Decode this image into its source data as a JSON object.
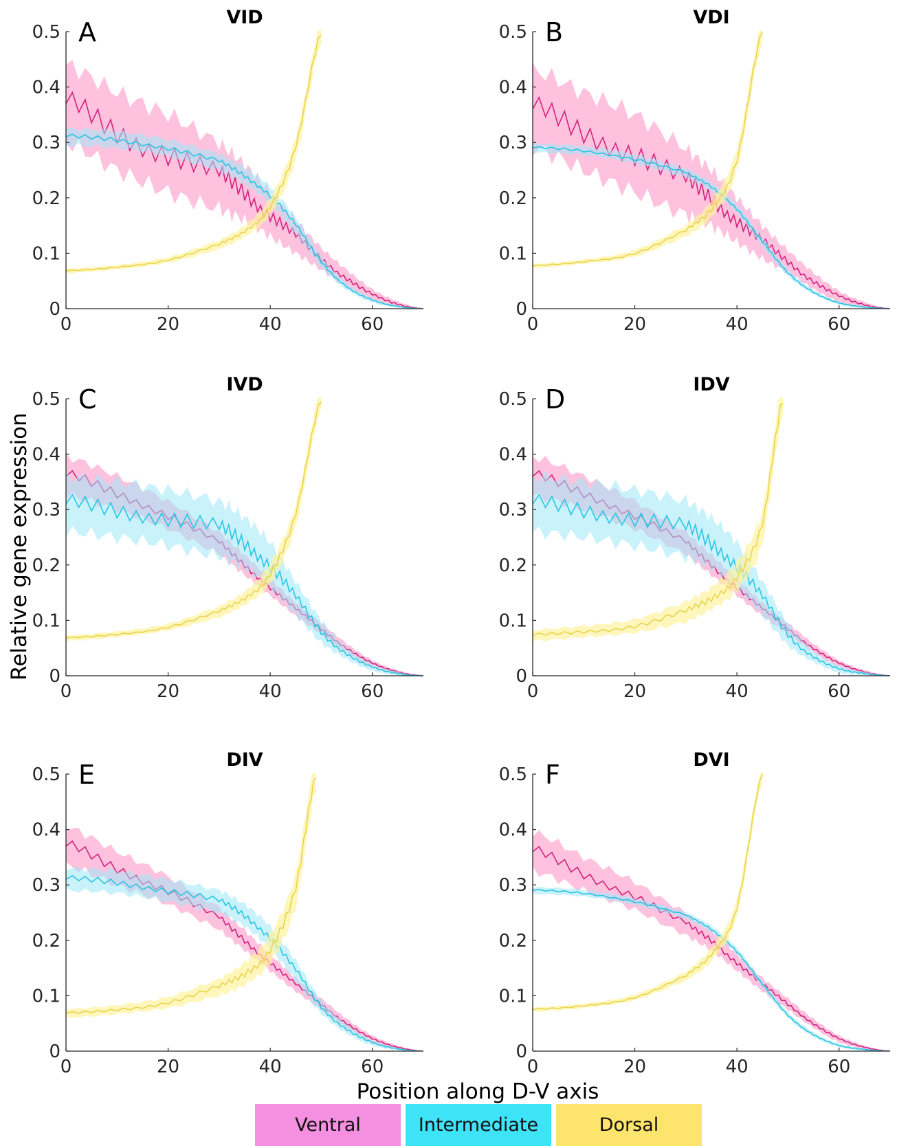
{
  "figure": {
    "ylabel": "Relative gene expression",
    "xlabel": "Position along D-V axis",
    "legend": [
      {
        "name": "Ventral",
        "color": "#f58fe0"
      },
      {
        "name": "Intermediate",
        "color": "#3fe3f7"
      },
      {
        "name": "Dorsal",
        "color": "#fde46c"
      }
    ],
    "colors": {
      "ventral_line": "#d0217c",
      "ventral_band": "#ff90c2",
      "intermediate_line": "#29c4e2",
      "intermediate_band": "#9fe8f8",
      "dorsal_line": "#e8d44c",
      "dorsal_band": "#fff2a0"
    }
  },
  "chart_data": [
    {
      "type": "line",
      "title": "VID",
      "panel": "A",
      "xlim": [
        0,
        70
      ],
      "ylim": [
        0,
        0.5
      ],
      "xticks": [
        0,
        20,
        40,
        60
      ],
      "yticks": [
        0,
        0.1,
        0.2,
        0.3,
        0.4,
        0.5
      ],
      "x": [
        0,
        10,
        20,
        30,
        35,
        40,
        45,
        50,
        55,
        60,
        65,
        70
      ],
      "series": [
        {
          "name": "Ventral",
          "values": [
            0.37,
            0.32,
            0.28,
            0.24,
            0.21,
            0.17,
            0.13,
            0.09,
            0.055,
            0.025,
            0.008,
            0
          ],
          "spread": [
            0.07,
            0.07,
            0.07,
            0.06,
            0.05,
            0.04,
            0.03,
            0.02,
            0.015,
            0.01,
            0.005,
            0
          ]
        },
        {
          "name": "Intermediate",
          "values": [
            0.31,
            0.305,
            0.29,
            0.265,
            0.24,
            0.205,
            0.15,
            0.085,
            0.04,
            0.015,
            0.004,
            0
          ],
          "spread": [
            0.015,
            0.015,
            0.015,
            0.015,
            0.015,
            0.015,
            0.015,
            0.01,
            0.006,
            0.004,
            0.002,
            0
          ]
        },
        {
          "name": "Dorsal",
          "values": [
            0.068,
            0.075,
            0.088,
            0.115,
            0.14,
            0.185,
            0.29,
            0.5
          ],
          "x": [
            0,
            10,
            20,
            30,
            35,
            40,
            45,
            50
          ],
          "spread": [
            0.004,
            0.004,
            0.005,
            0.008,
            0.01,
            0.015,
            0.02,
            0.02
          ]
        }
      ]
    },
    {
      "type": "line",
      "title": "VDI",
      "panel": "B",
      "xlim": [
        0,
        70
      ],
      "ylim": [
        0,
        0.5
      ],
      "xticks": [
        0,
        20,
        40,
        60
      ],
      "yticks": [
        0,
        0.1,
        0.2,
        0.3,
        0.4,
        0.5
      ],
      "x": [
        0,
        10,
        20,
        30,
        35,
        40,
        45,
        50,
        55,
        60,
        65,
        70
      ],
      "series": [
        {
          "name": "Ventral",
          "values": [
            0.36,
            0.32,
            0.28,
            0.23,
            0.2,
            0.16,
            0.12,
            0.085,
            0.05,
            0.022,
            0.007,
            0
          ],
          "spread": [
            0.07,
            0.07,
            0.07,
            0.06,
            0.05,
            0.04,
            0.03,
            0.02,
            0.015,
            0.01,
            0.005,
            0
          ]
        },
        {
          "name": "Intermediate",
          "values": [
            0.29,
            0.285,
            0.27,
            0.245,
            0.22,
            0.18,
            0.12,
            0.065,
            0.03,
            0.01,
            0.003,
            0
          ],
          "spread": [
            0.008,
            0.008,
            0.008,
            0.008,
            0.008,
            0.008,
            0.008,
            0.006,
            0.004,
            0.003,
            0.002,
            0
          ]
        },
        {
          "name": "Dorsal",
          "values": [
            0.077,
            0.085,
            0.1,
            0.14,
            0.18,
            0.27,
            0.5
          ],
          "x": [
            0,
            10,
            20,
            30,
            35,
            40,
            45
          ],
          "spread": [
            0.004,
            0.004,
            0.006,
            0.01,
            0.015,
            0.02,
            0.02
          ]
        }
      ]
    },
    {
      "type": "line",
      "title": "IVD",
      "panel": "C",
      "xlim": [
        0,
        70
      ],
      "ylim": [
        0,
        0.5
      ],
      "xticks": [
        0,
        20,
        40,
        60
      ],
      "yticks": [
        0,
        0.1,
        0.2,
        0.3,
        0.4,
        0.5
      ],
      "x": [
        0,
        10,
        20,
        30,
        35,
        40,
        45,
        50,
        55,
        60,
        65,
        70
      ],
      "series": [
        {
          "name": "Ventral",
          "values": [
            0.36,
            0.33,
            0.29,
            0.24,
            0.2,
            0.16,
            0.12,
            0.085,
            0.05,
            0.022,
            0.007,
            0
          ],
          "spread": [
            0.035,
            0.03,
            0.025,
            0.02,
            0.018,
            0.015,
            0.012,
            0.01,
            0.008,
            0.006,
            0.003,
            0
          ]
        },
        {
          "name": "Intermediate",
          "values": [
            0.31,
            0.3,
            0.285,
            0.265,
            0.24,
            0.2,
            0.14,
            0.08,
            0.04,
            0.015,
            0.004,
            0
          ],
          "spread": [
            0.05,
            0.05,
            0.05,
            0.05,
            0.045,
            0.04,
            0.03,
            0.02,
            0.01,
            0.006,
            0.003,
            0
          ]
        },
        {
          "name": "Dorsal",
          "values": [
            0.068,
            0.075,
            0.088,
            0.115,
            0.14,
            0.185,
            0.29,
            0.5
          ],
          "x": [
            0,
            10,
            20,
            30,
            35,
            40,
            45,
            50
          ],
          "spread": [
            0.005,
            0.005,
            0.006,
            0.01,
            0.012,
            0.018,
            0.02,
            0.02
          ]
        }
      ]
    },
    {
      "type": "line",
      "title": "IDV",
      "panel": "D",
      "xlim": [
        0,
        70
      ],
      "ylim": [
        0,
        0.5
      ],
      "xticks": [
        0,
        20,
        40,
        60
      ],
      "yticks": [
        0,
        0.1,
        0.2,
        0.3,
        0.4,
        0.5
      ],
      "x": [
        0,
        10,
        20,
        30,
        35,
        40,
        45,
        50,
        55,
        60,
        65,
        70
      ],
      "series": [
        {
          "name": "Ventral",
          "values": [
            0.36,
            0.33,
            0.29,
            0.24,
            0.2,
            0.16,
            0.12,
            0.085,
            0.05,
            0.022,
            0.007,
            0
          ],
          "spread": [
            0.035,
            0.03,
            0.025,
            0.02,
            0.018,
            0.015,
            0.012,
            0.01,
            0.008,
            0.006,
            0.003,
            0
          ]
        },
        {
          "name": "Intermediate",
          "values": [
            0.31,
            0.3,
            0.285,
            0.265,
            0.24,
            0.2,
            0.14,
            0.075,
            0.035,
            0.012,
            0.004,
            0
          ],
          "spread": [
            0.05,
            0.05,
            0.05,
            0.05,
            0.045,
            0.04,
            0.03,
            0.02,
            0.01,
            0.006,
            0.003,
            0
          ]
        },
        {
          "name": "Dorsal",
          "values": [
            0.073,
            0.08,
            0.09,
            0.115,
            0.14,
            0.18,
            0.27,
            0.5
          ],
          "x": [
            0,
            10,
            20,
            30,
            35,
            40,
            45,
            49
          ],
          "spread": [
            0.01,
            0.01,
            0.012,
            0.018,
            0.02,
            0.025,
            0.03,
            0.03
          ]
        }
      ]
    },
    {
      "type": "line",
      "title": "DIV",
      "panel": "E",
      "xlim": [
        0,
        70
      ],
      "ylim": [
        0,
        0.5
      ],
      "xticks": [
        0,
        20,
        40,
        60
      ],
      "yticks": [
        0,
        0.1,
        0.2,
        0.3,
        0.4,
        0.5
      ],
      "x": [
        0,
        10,
        20,
        30,
        35,
        40,
        45,
        50,
        55,
        60,
        65,
        70
      ],
      "series": [
        {
          "name": "Ventral",
          "values": [
            0.37,
            0.33,
            0.29,
            0.24,
            0.2,
            0.16,
            0.12,
            0.085,
            0.05,
            0.022,
            0.007,
            0
          ],
          "spread": [
            0.035,
            0.03,
            0.025,
            0.02,
            0.018,
            0.015,
            0.012,
            0.01,
            0.008,
            0.006,
            0.003,
            0
          ]
        },
        {
          "name": "Intermediate",
          "values": [
            0.31,
            0.305,
            0.29,
            0.27,
            0.245,
            0.205,
            0.145,
            0.08,
            0.04,
            0.015,
            0.004,
            0
          ],
          "spread": [
            0.02,
            0.02,
            0.02,
            0.02,
            0.02,
            0.02,
            0.018,
            0.012,
            0.008,
            0.005,
            0.002,
            0
          ]
        },
        {
          "name": "Dorsal",
          "values": [
            0.068,
            0.075,
            0.088,
            0.115,
            0.14,
            0.185,
            0.29,
            0.5
          ],
          "x": [
            0,
            10,
            20,
            30,
            35,
            40,
            45,
            49
          ],
          "spread": [
            0.008,
            0.008,
            0.01,
            0.015,
            0.02,
            0.025,
            0.03,
            0.03
          ]
        }
      ]
    },
    {
      "type": "line",
      "title": "DVI",
      "panel": "F",
      "xlim": [
        0,
        70
      ],
      "ylim": [
        0,
        0.5
      ],
      "xticks": [
        0,
        20,
        40,
        60
      ],
      "yticks": [
        0,
        0.1,
        0.2,
        0.3,
        0.4,
        0.5
      ],
      "x": [
        0,
        10,
        20,
        30,
        35,
        40,
        45,
        50,
        55,
        60,
        65,
        70
      ],
      "series": [
        {
          "name": "Ventral",
          "values": [
            0.36,
            0.32,
            0.28,
            0.23,
            0.2,
            0.16,
            0.12,
            0.085,
            0.05,
            0.022,
            0.007,
            0
          ],
          "spread": [
            0.035,
            0.03,
            0.025,
            0.02,
            0.018,
            0.015,
            0.012,
            0.01,
            0.008,
            0.006,
            0.003,
            0
          ]
        },
        {
          "name": "Intermediate",
          "values": [
            0.29,
            0.285,
            0.27,
            0.245,
            0.22,
            0.18,
            0.12,
            0.065,
            0.03,
            0.01,
            0.003,
            0
          ],
          "spread": [
            0.006,
            0.006,
            0.006,
            0.006,
            0.006,
            0.006,
            0.006,
            0.005,
            0.004,
            0.003,
            0.002,
            0
          ]
        },
        {
          "name": "Dorsal",
          "values": [
            0.075,
            0.082,
            0.097,
            0.135,
            0.175,
            0.26,
            0.5
          ],
          "x": [
            0,
            10,
            20,
            30,
            35,
            40,
            45
          ],
          "spread": [
            0.004,
            0.004,
            0.005,
            0.008,
            0.012,
            0.015,
            0.015
          ]
        }
      ]
    }
  ]
}
